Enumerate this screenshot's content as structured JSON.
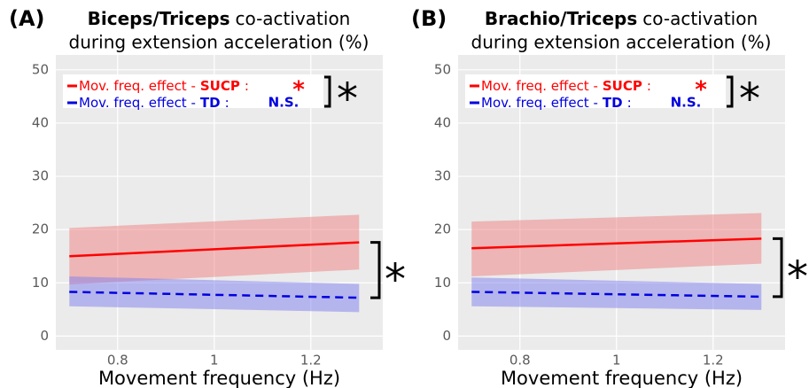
{
  "chart_data": [
    {
      "type": "line",
      "panel_label": "(A)",
      "title_bold": "Biceps/Triceps",
      "title": "co-activation",
      "subtitle": "during extension acceleration (%)",
      "xlabel": "Movement frequency (Hz)",
      "x": [
        0.7,
        1.3
      ],
      "xlim": [
        0.672,
        1.349
      ],
      "xticks": [
        0.8,
        1.0,
        1.2
      ],
      "ylim": [
        -2.6,
        52.8
      ],
      "yticks": [
        0,
        10,
        20,
        30,
        40,
        50
      ],
      "grid": true,
      "series": [
        {
          "name": "SUCP",
          "effect": "Mov. freq. effect -",
          "colon": ":",
          "significance": "*",
          "color": "#ff0000",
          "fill": "#f08080",
          "dash": false,
          "values": [
            15.0,
            17.6
          ],
          "upper": [
            20.3,
            22.8
          ],
          "lower": [
            9.7,
            12.5
          ]
        },
        {
          "name": "TD",
          "effect": "Mov. freq. effect -",
          "colon": ":",
          "significance": "N.S.",
          "color": "#0000e0",
          "fill": "#8080f0",
          "dash": true,
          "values": [
            8.3,
            7.2
          ],
          "upper": [
            11.2,
            9.8
          ],
          "lower": [
            5.6,
            4.5
          ]
        }
      ],
      "legend_bracket_label": "*",
      "group_bracket_label": "*"
    },
    {
      "type": "line",
      "panel_label": "(B)",
      "title_bold": "Brachio/Triceps",
      "title": "co-activation",
      "subtitle": "during extension acceleration (%)",
      "xlabel": "Movement frequency (Hz)",
      "x": [
        0.7,
        1.3
      ],
      "xlim": [
        0.672,
        1.349
      ],
      "xticks": [
        0.8,
        1.0,
        1.2
      ],
      "ylim": [
        -2.6,
        52.8
      ],
      "yticks": [
        0,
        10,
        20,
        30,
        40,
        50
      ],
      "grid": true,
      "series": [
        {
          "name": "SUCP",
          "effect": "Mov. freq. effect -",
          "colon": ":",
          "significance": "*",
          "color": "#ff0000",
          "fill": "#f08080",
          "dash": false,
          "values": [
            16.5,
            18.3
          ],
          "upper": [
            21.5,
            23.1
          ],
          "lower": [
            11.2,
            13.6
          ]
        },
        {
          "name": "TD",
          "effect": "Mov. freq. effect -",
          "colon": ":",
          "significance": "N.S.",
          "color": "#0000e0",
          "fill": "#8080f0",
          "dash": true,
          "values": [
            8.3,
            7.4
          ],
          "upper": [
            11.0,
            9.8
          ],
          "lower": [
            5.6,
            4.9
          ]
        }
      ],
      "legend_bracket_label": "*",
      "group_bracket_label": "*"
    }
  ]
}
